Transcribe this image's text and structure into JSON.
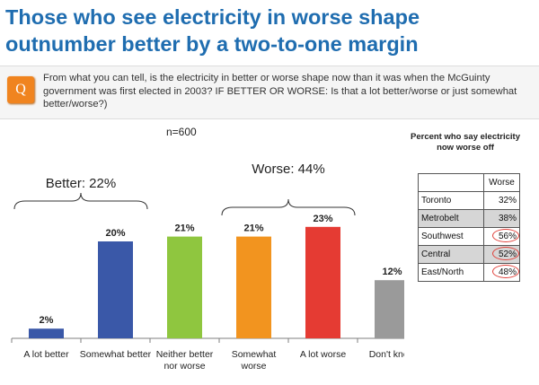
{
  "title_line1": "Those who see electricity in worse shape",
  "title_line2": "outnumber better by a two-to-one margin",
  "question_badge": "Q",
  "question_text": "From what you can tell, is the electricity in better or worse shape now than it was when the McGuinty government was first elected in 2003?  IF BETTER OR WORSE:  Is that a lot better/worse or just somewhat better/worse?)",
  "sample_size": "n=600",
  "chart_data": {
    "type": "bar",
    "categories": [
      [
        "A lot better"
      ],
      [
        "Somewhat better"
      ],
      [
        "Neither better",
        "nor worse"
      ],
      [
        "Somewhat",
        "worse"
      ],
      [
        "A lot worse"
      ],
      [
        "Don't know"
      ]
    ],
    "values": [
      2,
      20,
      21,
      21,
      23,
      12
    ],
    "value_labels": [
      "2%",
      "20%",
      "21%",
      "21%",
      "23%",
      "12%"
    ],
    "colors": [
      "#3a58a8",
      "#3a58a8",
      "#8fc63f",
      "#f2941f",
      "#e53b33",
      "#9a9a9a"
    ],
    "ylim": [
      0,
      25
    ],
    "grid": false,
    "groups": [
      {
        "label": "Better: 22%",
        "from": 0,
        "to": 1
      },
      {
        "label": "Worse: 44%",
        "from": 3,
        "to": 4
      }
    ]
  },
  "side_table": {
    "title_line1": "Percent who say electricity",
    "title_line2": "now worse off",
    "header": "Worse",
    "rows": [
      {
        "region": "Toronto",
        "value": "32%",
        "shaded": false,
        "circled": false
      },
      {
        "region": "Metrobelt",
        "value": "38%",
        "shaded": true,
        "circled": false
      },
      {
        "region": "Southwest",
        "value": "56%",
        "shaded": false,
        "circled": true
      },
      {
        "region": "Central",
        "value": "52%",
        "shaded": true,
        "circled": true
      },
      {
        "region": "East/North",
        "value": "48%",
        "shaded": false,
        "circled": true
      }
    ]
  }
}
